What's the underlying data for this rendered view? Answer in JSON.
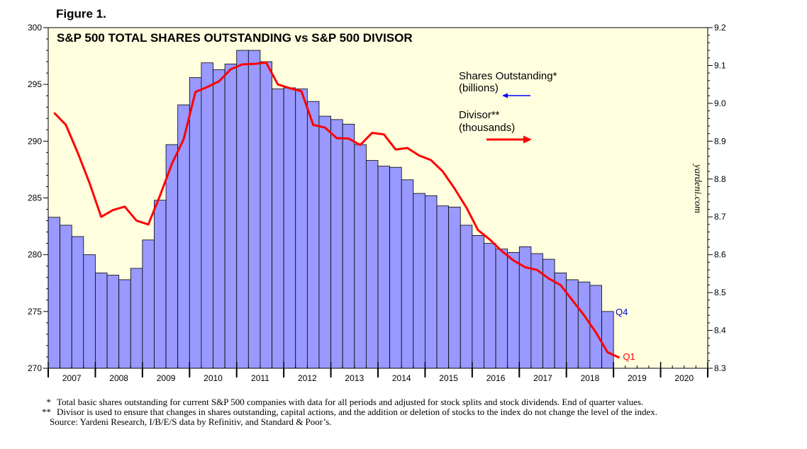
{
  "figure_label": "Figure 1.",
  "credit": "yardeni.com",
  "chart_data": {
    "type": "bar+line",
    "title": "S&P 500 TOTAL SHARES OUTSTANDING vs S&P 500 DIVISOR",
    "x_categories": [
      "2007",
      "2008",
      "2009",
      "2010",
      "2011",
      "2012",
      "2013",
      "2014",
      "2015",
      "2016",
      "2017",
      "2018",
      "2019",
      "2020"
    ],
    "x_range": [
      2007,
      2021
    ],
    "left_axis": {
      "label": "Shares Outstanding (billions)",
      "ylim": [
        270,
        300
      ],
      "ticks": [
        270,
        275,
        280,
        285,
        290,
        295,
        300
      ]
    },
    "right_axis": {
      "label": "Divisor (thousands)",
      "ylim": [
        8.3,
        9.2
      ],
      "ticks": [
        "8.3",
        "8.4",
        "8.5",
        "8.6",
        "8.7",
        "8.8",
        "8.9",
        "9.0",
        "9.1",
        "9.2"
      ]
    },
    "series": [
      {
        "name": "Shares Outstanding*",
        "unit": "(billions)",
        "type": "bar",
        "axis": "left",
        "color": "#9999ff",
        "end_label": "Q4",
        "end_label_color": "#0000cc",
        "x": [
          2007.0,
          2007.25,
          2007.5,
          2007.75,
          2008.0,
          2008.25,
          2008.5,
          2008.75,
          2009.0,
          2009.25,
          2009.5,
          2009.75,
          2010.0,
          2010.25,
          2010.5,
          2010.75,
          2011.0,
          2011.25,
          2011.5,
          2011.75,
          2012.0,
          2012.25,
          2012.5,
          2012.75,
          2013.0,
          2013.25,
          2013.5,
          2013.75,
          2014.0,
          2014.25,
          2014.5,
          2014.75,
          2015.0,
          2015.25,
          2015.5,
          2015.75,
          2016.0,
          2016.25,
          2016.5,
          2016.75,
          2017.0,
          2017.25,
          2017.5,
          2017.75,
          2018.0,
          2018.25,
          2018.5,
          2018.75
        ],
        "values": [
          283.3,
          282.6,
          281.6,
          280.0,
          278.4,
          278.2,
          277.8,
          278.8,
          281.3,
          284.8,
          289.7,
          293.2,
          295.6,
          296.9,
          296.3,
          296.8,
          298.0,
          298.0,
          297.0,
          294.6,
          294.7,
          294.6,
          293.5,
          292.2,
          291.9,
          291.5,
          289.7,
          288.3,
          287.8,
          287.7,
          286.6,
          285.4,
          285.2,
          284.3,
          284.2,
          282.6,
          281.7,
          281.0,
          280.5,
          280.2,
          280.7,
          280.1,
          279.6,
          278.4,
          277.8,
          277.6,
          277.3,
          275.0
        ]
      },
      {
        "name": "Divisor**",
        "unit": "(thousands)",
        "type": "line",
        "axis": "right",
        "color": "#ff0000",
        "end_label": "Q1",
        "end_label_color": "#ff0000",
        "x": [
          2007.0,
          2007.25,
          2007.5,
          2007.75,
          2008.0,
          2008.25,
          2008.5,
          2008.75,
          2009.0,
          2009.25,
          2009.5,
          2009.75,
          2010.0,
          2010.25,
          2010.5,
          2010.75,
          2011.0,
          2011.25,
          2011.5,
          2011.75,
          2012.0,
          2012.25,
          2012.5,
          2012.75,
          2013.0,
          2013.25,
          2013.5,
          2013.75,
          2014.0,
          2014.25,
          2014.5,
          2014.75,
          2015.0,
          2015.25,
          2015.5,
          2015.75,
          2016.0,
          2016.25,
          2016.5,
          2016.75,
          2017.0,
          2017.25,
          2017.5,
          2017.75,
          2018.0,
          2018.25,
          2018.5,
          2018.75,
          2019.0
        ],
        "values": [
          8.975,
          8.943,
          8.87,
          8.79,
          8.7,
          8.718,
          8.727,
          8.69,
          8.68,
          8.757,
          8.84,
          8.905,
          9.03,
          9.043,
          9.058,
          9.09,
          9.103,
          9.104,
          9.108,
          9.05,
          9.04,
          9.032,
          8.943,
          8.936,
          8.908,
          8.907,
          8.89,
          8.922,
          8.918,
          8.878,
          8.882,
          8.862,
          8.85,
          8.82,
          8.775,
          8.725,
          8.665,
          8.64,
          8.61,
          8.585,
          8.567,
          8.56,
          8.537,
          8.52,
          8.48,
          8.44,
          8.395,
          8.342,
          8.328
        ]
      }
    ],
    "legend": [
      {
        "name": "Shares Outstanding*",
        "unit": "(billions)",
        "arrow": "left",
        "color": "#0000ff"
      },
      {
        "name": "Divisor**",
        "unit": "(thousands)",
        "arrow": "right",
        "color": "#ff0000"
      }
    ],
    "plot_background": "#ffffe0"
  },
  "notes": [
    {
      "mark": "*",
      "text": "Total basic shares outstanding for current S&P 500 companies with data for all periods and adjusted for stock splits and stock dividends. End of quarter values."
    },
    {
      "mark": "**",
      "text": "Divisor is used to ensure that changes in shares outstanding, capital actions, and the addition or deletion of stocks to the index do not change the level of the index."
    }
  ],
  "source": "Source: Yardeni Research, I/B/E/S data by Refinitiv, and Standard & Poor’s."
}
